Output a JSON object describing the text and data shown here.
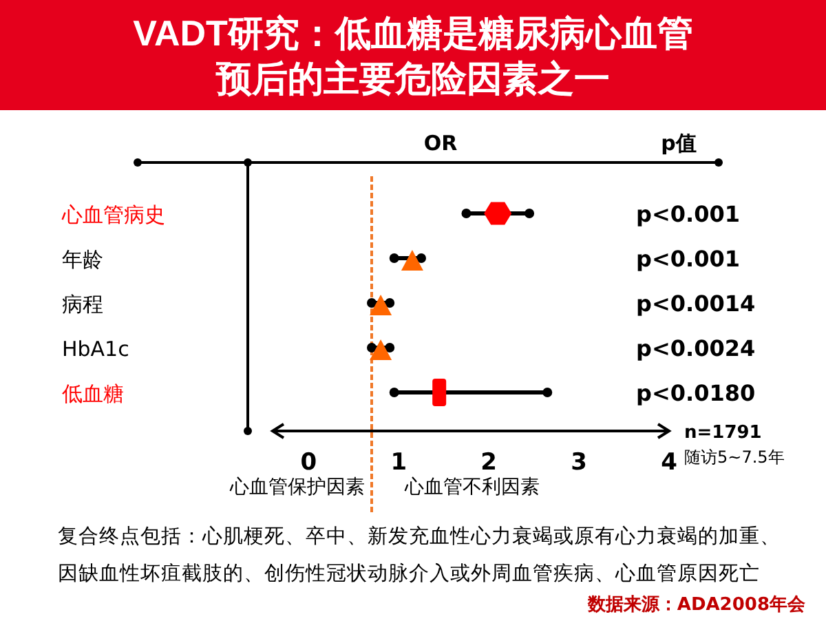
{
  "chart_data": {
    "type": "scatter",
    "orientation": "horizontal",
    "title": "VADT研究：低血糖是糖尿病心血管预后的主要危险因素之一",
    "xlabel": "OR",
    "categories": [
      "心血管病史",
      "年龄",
      "病程",
      "HbA1c",
      "低血糖"
    ],
    "series": [
      {
        "color": "#ff0000",
        "values": [
          2.1,
          null,
          null,
          null,
          null
        ],
        "errors": [
          [
            1.75,
            2.45
          ],
          null,
          null,
          null,
          null
        ]
      },
      {
        "color": "#ff6600",
        "marker": "triangle",
        "values": [
          null,
          1.15,
          0.8,
          0.8,
          null
        ],
        "errors": [
          null,
          [
            0.95,
            1.25
          ],
          [
            0.7,
            0.9
          ],
          [
            0.7,
            0.9
          ],
          null
        ]
      },
      {
        "color": "#ff0000",
        "marker": "square",
        "values": [
          null,
          null,
          null,
          null,
          1.45
        ],
        "errors": [
          null,
          null,
          null,
          null,
          [
            0.95,
            2.65
          ]
        ]
      }
    ],
    "xlim": [
      -0.4,
      4
    ],
    "xticks": [
      0,
      1,
      2,
      3,
      4
    ],
    "ref_lines": [
      {
        "axis": "x",
        "value": 0.7,
        "color": "#f07828",
        "line_style": "dashed"
      }
    ],
    "annotations": [
      "p值",
      "p<0.001",
      "p<0.001",
      "p<0.0014",
      "p<0.0024",
      "p<0.0180",
      "n=1791",
      "随访5~7.5年",
      "心血管保护因素",
      "心血管不利因素",
      "复合终点包括：心肌梗死、卒中、新发充血性心力衰竭或原有心力衰竭的加重、因缺血性坏疽截肢的、创伤性冠状动脉介入或外周血管疾病、心血管原因死亡",
      "数据来源：ADA2008年会"
    ]
  }
}
